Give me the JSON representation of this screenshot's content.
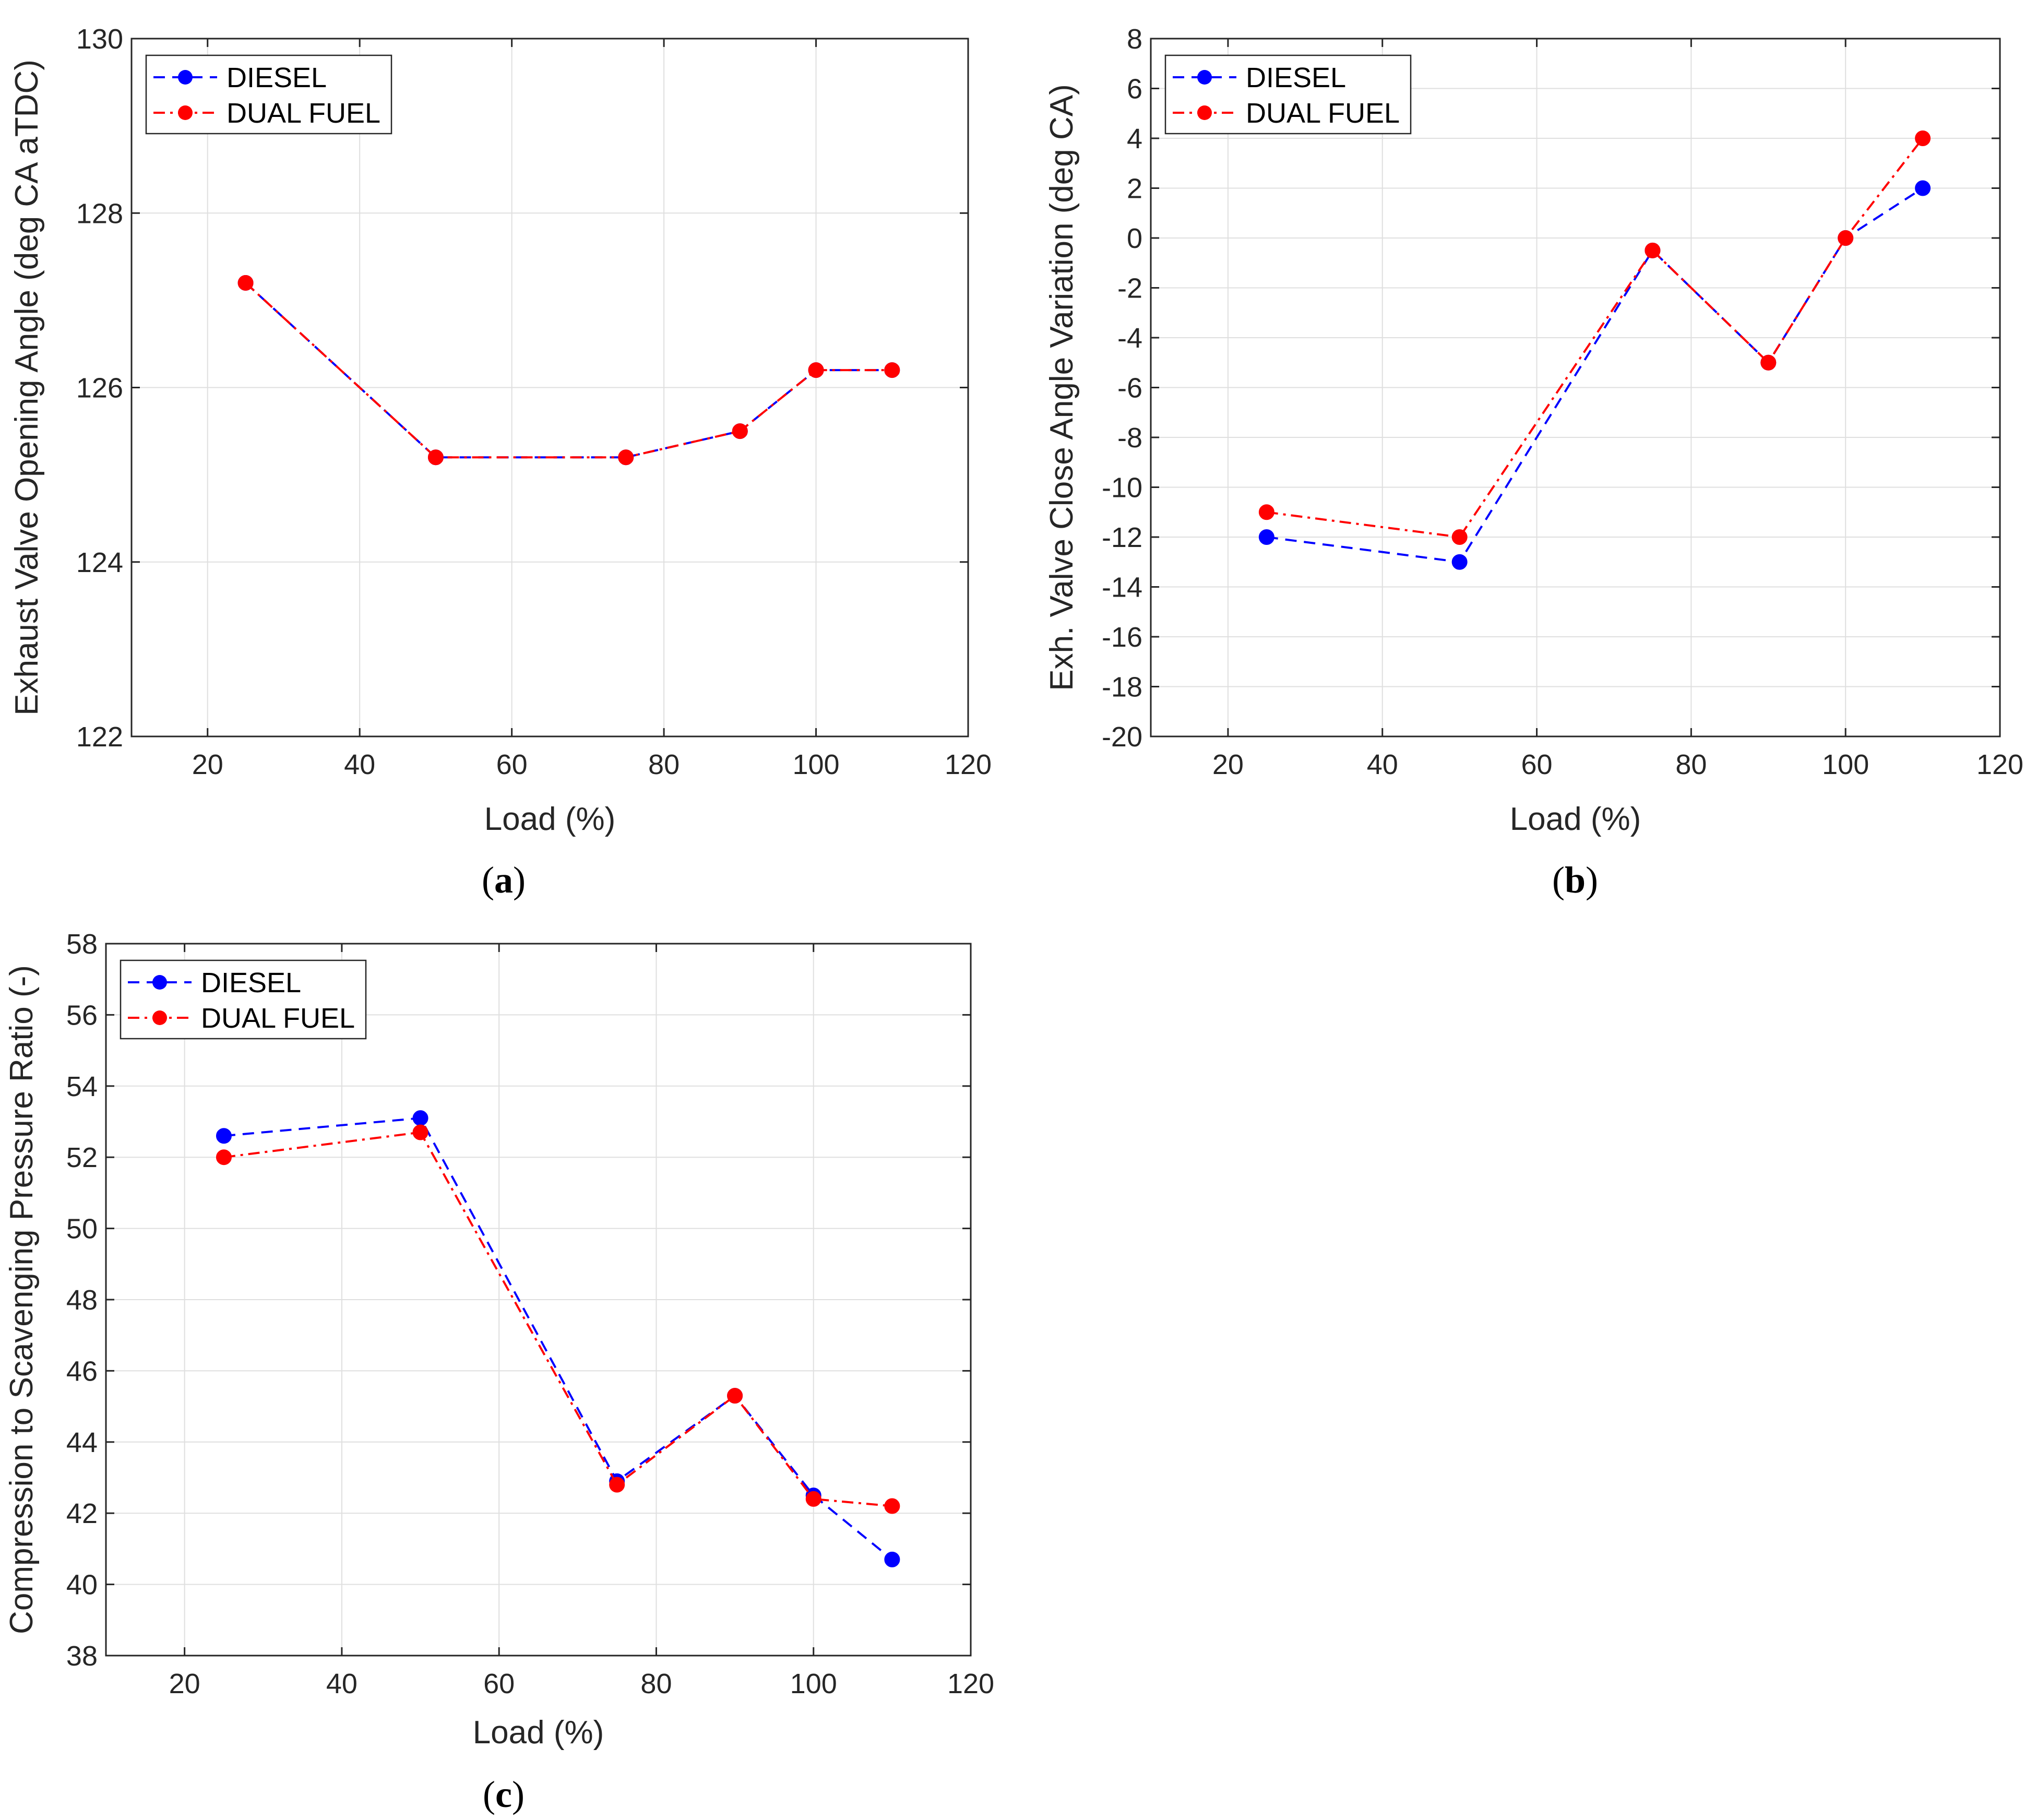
{
  "chart_data": [
    {
      "id": "a",
      "type": "line",
      "caption_letter": "a",
      "xlabel": "Load (%)",
      "ylabel": "Exhaust Valve Opening Angle (deg CA aTDC)",
      "xlim": [
        10,
        120
      ],
      "ylim": [
        122,
        130
      ],
      "xticks": [
        20,
        40,
        60,
        80,
        100,
        120
      ],
      "yticks": [
        122,
        124,
        126,
        128,
        130
      ],
      "x": [
        25,
        50,
        75,
        90,
        100,
        110
      ],
      "series": [
        {
          "name": "DIESEL",
          "values": [
            127.2,
            125.2,
            125.2,
            125.5,
            126.2,
            126.2
          ],
          "color": "#0000ff",
          "dash": "dashed"
        },
        {
          "name": "DUAL FUEL",
          "values": [
            127.2,
            125.2,
            125.2,
            125.5,
            126.2,
            126.2
          ],
          "color": "#ff0000",
          "dash": "dashdot"
        }
      ],
      "legend": "top-left",
      "grid": true
    },
    {
      "id": "b",
      "type": "line",
      "caption_letter": "b",
      "xlabel": "Load (%)",
      "ylabel": "Exh. Valve Close Angle Variation (deg CA)",
      "xlim": [
        10,
        120
      ],
      "ylim": [
        -20,
        8
      ],
      "xticks": [
        20,
        40,
        60,
        80,
        100,
        120
      ],
      "yticks": [
        -20,
        -18,
        -16,
        -14,
        -12,
        -10,
        -8,
        -6,
        -4,
        -2,
        0,
        2,
        4,
        6,
        8
      ],
      "x": [
        25,
        50,
        75,
        90,
        100,
        110
      ],
      "series": [
        {
          "name": "DIESEL",
          "values": [
            -12,
            -13,
            -0.5,
            -5,
            0,
            2
          ],
          "color": "#0000ff",
          "dash": "dashed"
        },
        {
          "name": "DUAL FUEL",
          "values": [
            -11,
            -12,
            -0.5,
            -5,
            0,
            4
          ],
          "color": "#ff0000",
          "dash": "dashdot"
        }
      ],
      "legend": "top-left",
      "grid": true
    },
    {
      "id": "c",
      "type": "line",
      "caption_letter": "c",
      "xlabel": "Load (%)",
      "ylabel": "Compression to Scavenging Pressure Ratio (-)",
      "xlim": [
        10,
        120
      ],
      "ylim": [
        38,
        58
      ],
      "xticks": [
        20,
        40,
        60,
        80,
        100,
        120
      ],
      "yticks": [
        38,
        40,
        42,
        44,
        46,
        48,
        50,
        52,
        54,
        56,
        58
      ],
      "x": [
        25,
        50,
        75,
        90,
        100,
        110
      ],
      "series": [
        {
          "name": "DIESEL",
          "values": [
            52.6,
            53.1,
            42.9,
            45.3,
            42.5,
            40.7
          ],
          "color": "#0000ff",
          "dash": "dashed"
        },
        {
          "name": "DUAL FUEL",
          "values": [
            52.0,
            52.7,
            42.8,
            45.3,
            42.4,
            42.2
          ],
          "color": "#ff0000",
          "dash": "dashdot"
        }
      ],
      "legend": "top-left",
      "grid": true
    }
  ]
}
